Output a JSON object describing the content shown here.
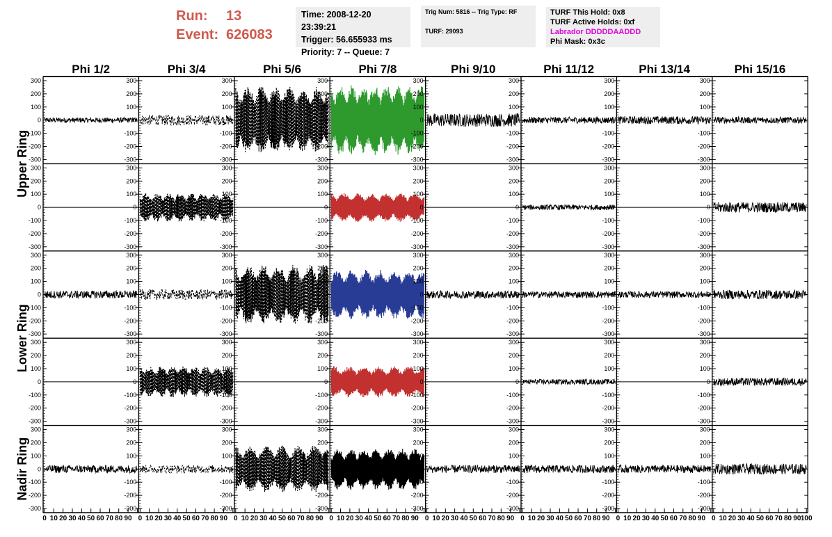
{
  "header": {
    "run_label": "Run:",
    "run_value": "13",
    "event_label": "Event:",
    "event_value": "626083",
    "time_line": "Time: 2008-12-20 23:39:21",
    "trigger_line": "Trigger: 56.655933 ms",
    "priority_line": "Priority: 7 -- Queue: 7",
    "trig_line": "Trig Num: 5816 -- Trig Type: RF",
    "turf_line": "TURF: 29093",
    "turf_hold": "TURF This Hold: 0x8",
    "turf_active": "TURF Active Holds: 0xf",
    "labrador": "Labrador DDDDDAADDD",
    "phi_mask": "Phi Mask: 0x3c"
  },
  "colors": {
    "header_red": "#d05a4e",
    "panel_bg": "#eeeeee",
    "labrador_magenta": "#e000e0",
    "trace_black": "#000000",
    "trace_green": "#2e9a2e",
    "trace_red": "#c23030",
    "trace_blue": "#283c96"
  },
  "chart_data": {
    "type": "line",
    "columns": [
      "Phi 1/2",
      "Phi 3/4",
      "Phi 5/6",
      "Phi 7/8",
      "Phi 9/10",
      "Phi 11/12",
      "Phi 13/14",
      "Phi 15/16"
    ],
    "ring_labels": [
      {
        "label": "Upper Ring",
        "rows": [
          0,
          1
        ]
      },
      {
        "label": "Lower Ring",
        "rows": [
          2,
          3
        ]
      },
      {
        "label": "Nadir Ring",
        "rows": [
          4
        ]
      }
    ],
    "xlim": [
      0,
      100
    ],
    "x_ticks": [
      0,
      10,
      20,
      30,
      40,
      50,
      60,
      70,
      80,
      90,
      100
    ],
    "x_tick_labels": [
      "0",
      "10",
      "20",
      "30",
      "40",
      "50",
      "60",
      "70",
      "80",
      "90",
      "100"
    ],
    "ylim": [
      -300,
      300
    ],
    "y_ticks": [
      300,
      200,
      100,
      0,
      -100,
      -200,
      -300
    ],
    "y_tick_labels": [
      "300",
      "200",
      "100",
      "0",
      "-100",
      "-200",
      "-300"
    ],
    "flat_value": 0,
    "panels": [
      [
        {
          "style": "solid",
          "color": "black",
          "amplitude": 20
        },
        {
          "style": "dashed",
          "color": "black",
          "amplitude": 40
        },
        {
          "style": "dashed",
          "color": "black",
          "amplitude": 260
        },
        {
          "style": "solid",
          "color": "green",
          "amplitude": 270
        },
        {
          "style": "solid",
          "color": "black",
          "amplitude": 50
        },
        {
          "style": "solid",
          "color": "black",
          "amplitude": 25
        },
        {
          "style": "solid",
          "color": "black",
          "amplitude": 30
        },
        {
          "style": "solid",
          "color": "black",
          "amplitude": 25
        }
      ],
      [
        {
          "style": "flat",
          "color": "black",
          "amplitude": 0
        },
        {
          "style": "dashed",
          "color": "black",
          "amplitude": 110
        },
        {
          "style": "flat",
          "color": "black",
          "amplitude": 0
        },
        {
          "style": "solid",
          "color": "red",
          "amplitude": 110
        },
        {
          "style": "flat",
          "color": "black",
          "amplitude": 0
        },
        {
          "style": "solid",
          "color": "black",
          "amplitude": 20
        },
        {
          "style": "flat",
          "color": "black",
          "amplitude": 0
        },
        {
          "style": "solid",
          "color": "black",
          "amplitude": 40
        }
      ],
      [
        {
          "style": "solid",
          "color": "black",
          "amplitude": 30
        },
        {
          "style": "dashed",
          "color": "black",
          "amplitude": 40
        },
        {
          "style": "dashed",
          "color": "black",
          "amplitude": 230
        },
        {
          "style": "solid",
          "color": "blue",
          "amplitude": 190
        },
        {
          "style": "solid",
          "color": "black",
          "amplitude": 30
        },
        {
          "style": "solid",
          "color": "black",
          "amplitude": 25
        },
        {
          "style": "solid",
          "color": "black",
          "amplitude": 25
        },
        {
          "style": "solid",
          "color": "black",
          "amplitude": 35
        }
      ],
      [
        {
          "style": "flat",
          "color": "black",
          "amplitude": 0
        },
        {
          "style": "dashed",
          "color": "black",
          "amplitude": 120
        },
        {
          "style": "flat",
          "color": "black",
          "amplitude": 0
        },
        {
          "style": "solid",
          "color": "red",
          "amplitude": 120
        },
        {
          "style": "flat",
          "color": "black",
          "amplitude": 0
        },
        {
          "style": "solid",
          "color": "black",
          "amplitude": 20
        },
        {
          "style": "flat",
          "color": "black",
          "amplitude": 0
        },
        {
          "style": "solid",
          "color": "black",
          "amplitude": 30
        }
      ],
      [
        {
          "style": "solid",
          "color": "black",
          "amplitude": 30
        },
        {
          "style": "dashed",
          "color": "black",
          "amplitude": 30
        },
        {
          "style": "dashed",
          "color": "black",
          "amplitude": 180
        },
        {
          "style": "solid",
          "color": "black",
          "amplitude": 160
        },
        {
          "style": "solid",
          "color": "black",
          "amplitude": 30
        },
        {
          "style": "solid",
          "color": "black",
          "amplitude": 30
        },
        {
          "style": "solid",
          "color": "black",
          "amplitude": 30
        },
        {
          "style": "solid",
          "color": "black",
          "amplitude": 40
        }
      ]
    ]
  }
}
